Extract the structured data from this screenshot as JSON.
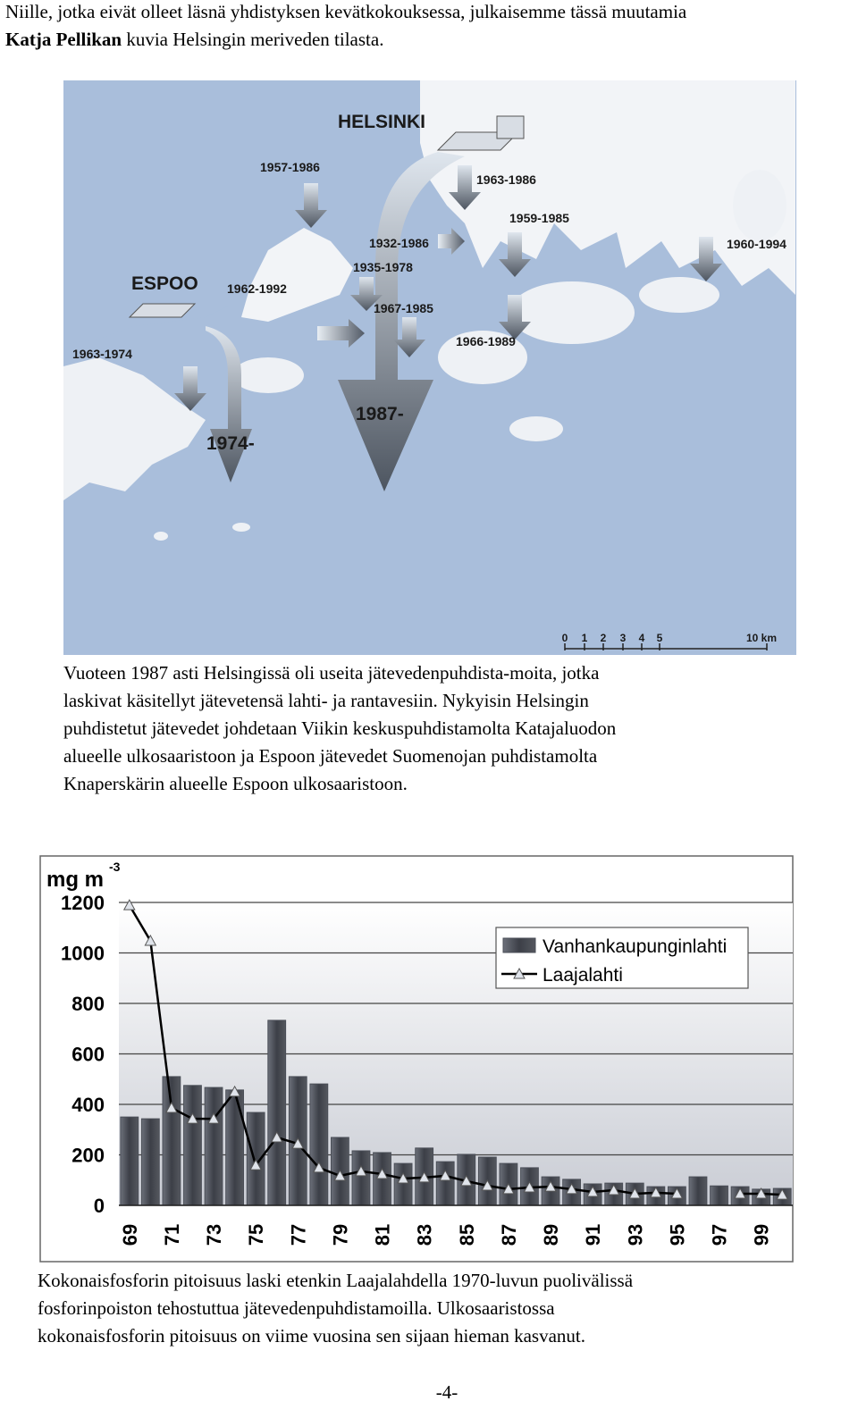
{
  "intro": {
    "line1": "Niille, jotka eivät olleet läsnä yhdistyksen kevätkokouksessa, julkaisemme tässä muutamia",
    "author": "Katja Pellikan",
    "line2_rest": "kuvia Helsingin meriveden tilasta."
  },
  "map": {
    "labels": [
      "HELSINKI",
      "ESPOO",
      "1957-1986",
      "1963-1986",
      "1959-1985",
      "1960-1994",
      "1932-1986",
      "1935-1978",
      "1962-1992",
      "1967-1985",
      "1963-1974",
      "1966-1989",
      "1987-",
      "1974-"
    ],
    "scale_labels": [
      "0",
      "1",
      "2",
      "3",
      "4",
      "5",
      "10 km"
    ]
  },
  "paragraph": {
    "lines": [
      "Vuoteen 1987 asti Helsingissä oli useita jätevedenpuhdista-moita,  jotka",
      "laskivat käsitellyt jätevetensä lahti- ja rantavesiin. Nykyisin Helsingin",
      "puhdistetut jätevedet johdetaan Viikin keskuspuhdistamolta Katajaluodon",
      "alueelle ulkosaaristoon ja Espoon jätevedet Suomenojan puhdistamolta",
      "Knaperskärin alueelle Espoon ulkosaaristoon."
    ]
  },
  "chart_data": {
    "type": "bar",
    "ylabel": "mg m",
    "ylabel_exponent": "-3",
    "categories": [
      "69",
      null,
      "71",
      null,
      "73",
      null,
      "75",
      null,
      "77",
      null,
      "79",
      null,
      "81",
      null,
      "83",
      null,
      "85",
      null,
      "87",
      null,
      "89",
      null,
      "91",
      null,
      "93",
      null,
      "95",
      null,
      "97",
      null,
      "99",
      null
    ],
    "series": [
      {
        "name": "Vanhankaupunginlahti",
        "type": "bar",
        "color": "#4a4e57",
        "values": [
          350,
          343,
          510,
          475,
          467,
          457,
          368,
          733,
          510,
          481,
          269,
          216,
          209,
          166,
          227,
          173,
          202,
          191,
          166,
          149,
          113,
          103,
          85,
          88,
          88,
          74,
          74,
          113,
          77,
          74,
          64,
          67
        ]
      },
      {
        "name": "Laajalahti",
        "type": "line",
        "color": "#000000",
        "values": [
          1189,
          1048,
          386,
          343,
          343,
          450,
          159,
          269,
          244,
          149,
          117,
          135,
          124,
          106,
          110,
          117,
          96,
          78,
          64,
          71,
          74,
          64,
          53,
          60,
          46,
          50,
          46,
          null,
          null,
          46,
          46,
          42
        ]
      }
    ],
    "ylim": [
      0,
      1200
    ],
    "yticks": [
      0,
      200,
      400,
      600,
      800,
      1000,
      1200
    ],
    "grid": true,
    "legend": "upper right"
  },
  "caption": {
    "lines": [
      "Kokonaisfosforin pitoisuus laski etenkin Laajalahdella 1970-luvun puolivälissä",
      "fosforinpoiston tehostuttua jätevedenpuhdistamoilla.  Ulkosaaristossa",
      "kokonaisfosforin pitoisuus on viime vuosina sen sijaan hieman kasvanut."
    ]
  },
  "page_number": "-4-"
}
